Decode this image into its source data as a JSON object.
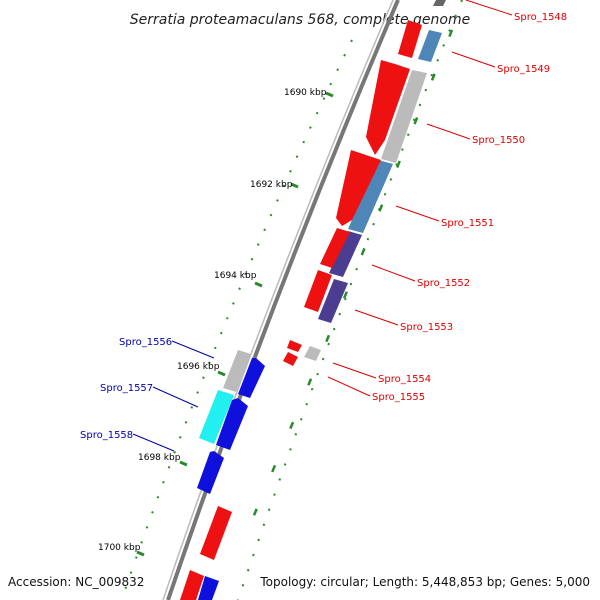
{
  "title": "Serratia proteamaculans 568, complete genome",
  "footer": {
    "accession": "Accession: NC_009832",
    "topology": "Topology: circular; Length: 5,448,853 bp; Genes: 5,000"
  },
  "colors": {
    "plus_strand_label": "#dd0000",
    "minus_strand_label": "#0000aa",
    "red_gene": "#ee1111",
    "blue_gene": "#1010dd",
    "grey_gene": "#b8b8b8",
    "steel_gene": "#4f86b8",
    "purple_gene": "#4b3d8f",
    "cyan_gene": "#22f0f0",
    "tick_green": "#2a8a2a",
    "backbone": "#777777"
  },
  "kbp_labels": [
    "1690 kbp",
    "1692 kbp",
    "1694 kbp",
    "1696 kbp",
    "1698 kbp",
    "1700 kbp"
  ],
  "genes_right": [
    "Spro_1548",
    "Spro_1549",
    "Spro_1550",
    "Spro_1551",
    "Spro_1552",
    "Spro_1553",
    "Spro_1554",
    "Spro_1555"
  ],
  "genes_left": [
    "Spro_1556",
    "Spro_1557",
    "Spro_1558"
  ]
}
